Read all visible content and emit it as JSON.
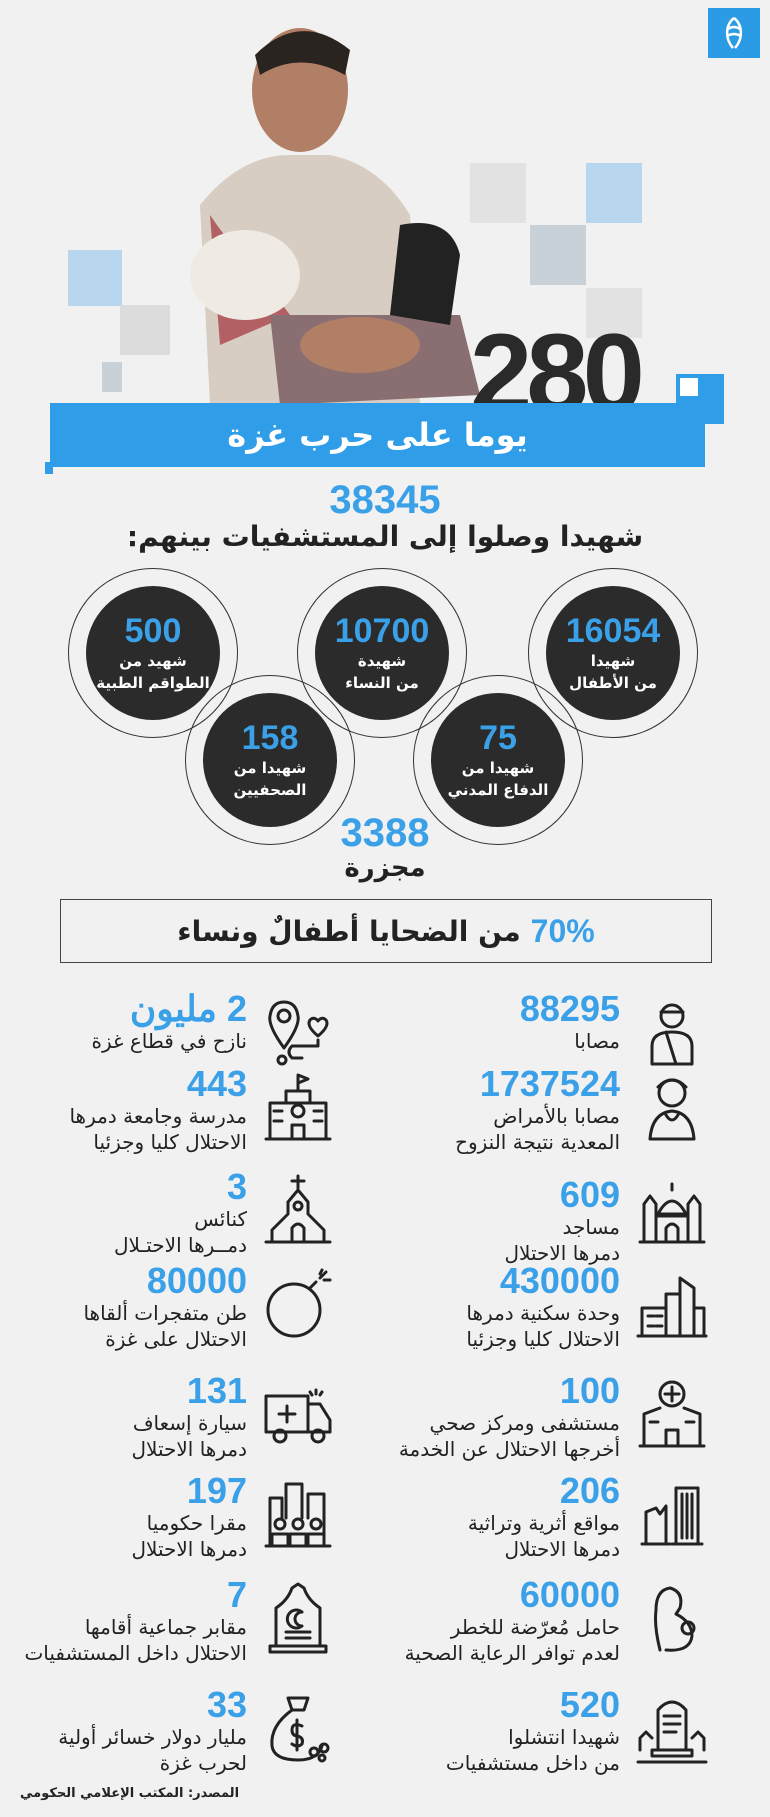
{
  "header": {
    "logo": "الجزيرة",
    "days": "280",
    "days_label": "يوما على حرب غزة"
  },
  "colors": {
    "accent": "#3aa0e8",
    "band": "#2f9de8",
    "dark": "#2b2b2b",
    "background": "#f1f1f1"
  },
  "martyrs": {
    "total": "38345",
    "total_label": "شهيدا وصلوا إلى المستشفيات بينهم:",
    "circles": [
      {
        "value": "16054",
        "line1": "شهيدا",
        "line2": "من الأطفال"
      },
      {
        "value": "10700",
        "line1": "شهيدة",
        "line2": "من النساء"
      },
      {
        "value": "500",
        "line1": "شهيد من",
        "line2": "الطواقم الطبية"
      },
      {
        "value": "75",
        "line1": "شهيدا من",
        "line2": "الدفاع المدني"
      },
      {
        "value": "158",
        "line1": "شهيدا من",
        "line2": "الصحفيين"
      }
    ],
    "massacres": "3388",
    "massacres_label": "مجزرة"
  },
  "share": {
    "percent": "70%",
    "label": "من الضحايا أطفالٌ ونساء"
  },
  "stats": {
    "right": [
      {
        "value": "88295",
        "lines": [
          "مصابا"
        ],
        "icon": "injured-person-icon"
      },
      {
        "value": "1737524",
        "lines": [
          "مصابا بالأمراض",
          "المعدية نتيجة النزوح"
        ],
        "icon": "sick-person-icon"
      },
      {
        "value": "609",
        "lines": [
          "مساجد",
          "دمرها الاحتلال"
        ],
        "icon": "mosque-icon"
      },
      {
        "value": "430000",
        "lines": [
          "وحدة سكنية دمرها",
          "الاحتلال كليا وجزئيا"
        ],
        "icon": "buildings-icon"
      },
      {
        "value": "100",
        "lines": [
          "مستشفى ومركز صحي",
          "أخرجها الاحتلال عن الخدمة"
        ],
        "icon": "hospital-icon"
      },
      {
        "value": "206",
        "lines": [
          "مواقع أثرية وتراثية",
          "دمرها الاحتلال"
        ],
        "icon": "ruins-column-icon"
      },
      {
        "value": "60000",
        "lines": [
          "حامل مُعرّضة للخطر",
          "لعدم توافر الرعاية الصحية"
        ],
        "icon": "pregnant-woman-icon"
      },
      {
        "value": "520",
        "lines": [
          "شهيدا انتشلوا",
          "من داخل مستشفيات"
        ],
        "icon": "grave-icon"
      }
    ],
    "left": [
      {
        "value": "2 مليون",
        "lines": [
          "نازح في قطاع غزة"
        ],
        "icon": "location-route-icon"
      },
      {
        "value": "443",
        "lines": [
          "مدرسة وجامعة دمرها",
          "الاحتلال كليا وجزئيا"
        ],
        "icon": "school-icon"
      },
      {
        "value": "3",
        "lines": [
          "كنائس",
          "دمــرها الاحتـلال"
        ],
        "icon": "church-icon"
      },
      {
        "value": "80000",
        "lines": [
          "طن متفجرات ألقاها",
          "الاحتلال على غزة"
        ],
        "icon": "bomb-icon"
      },
      {
        "value": "131",
        "lines": [
          "سيارة إسعاف",
          "دمرها الاحتلال"
        ],
        "icon": "ambulance-icon"
      },
      {
        "value": "197",
        "lines": [
          "مقرا حكوميا",
          "دمرها الاحتلال"
        ],
        "icon": "government-building-icon"
      },
      {
        "value": "7",
        "lines": [
          "مقابر جماعية أقامها",
          "الاحتلال داخل المستشفيات"
        ],
        "icon": "tombstone-icon"
      },
      {
        "value": "33",
        "lines": [
          "مليار دولار خسائر أولية",
          "لحرب غزة"
        ],
        "icon": "money-bag-icon"
      }
    ]
  },
  "source": "المصدر: المكتب الإعلامي الحكومي"
}
